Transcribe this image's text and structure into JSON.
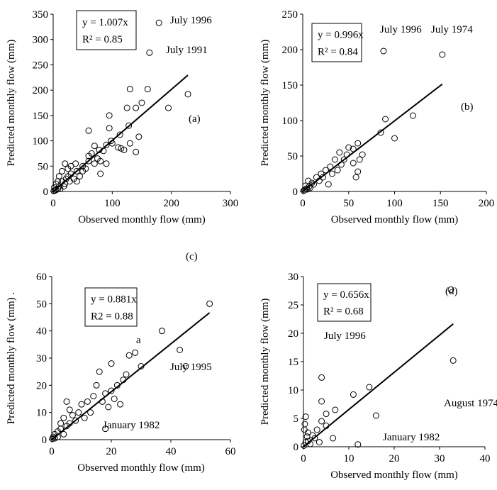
{
  "chart_data": [
    {
      "type": "scatter",
      "xlabel": "Observed monthly flow (mm)",
      "ylabel": "Predicted monthly flow (mm)",
      "xlim": [
        0,
        300
      ],
      "ylim": [
        0,
        350
      ],
      "xticks": [
        0,
        100,
        200,
        300
      ],
      "yticks": [
        0,
        50,
        100,
        150,
        200,
        250,
        300,
        350
      ],
      "equation": "y = 1.007x",
      "r2": "R² = 0.85",
      "trend_slope": 1.007,
      "annotations": [
        "July 1996",
        "July 1991",
        "(a)"
      ],
      "x": [
        228,
        195,
        160,
        150,
        145,
        140,
        130,
        128,
        125,
        120,
        115,
        113,
        110,
        100,
        98,
        95,
        95,
        90,
        85,
        80,
        78,
        75,
        70,
        65,
        60,
        60,
        55,
        50,
        45,
        40,
        38,
        35,
        30,
        28,
        25,
        22,
        20,
        18,
        15,
        15,
        12,
        10,
        10,
        8,
        8,
        5,
        5,
        3,
        2,
        1,
        20,
        25,
        30,
        40,
        50,
        60,
        70,
        80,
        90,
        130,
        140,
        179,
        163
      ],
      "y": [
        192,
        165,
        202,
        175,
        108,
        78,
        202,
        130,
        165,
        82,
        85,
        112,
        87,
        95,
        100,
        150,
        125,
        92,
        80,
        60,
        82,
        65,
        55,
        75,
        120,
        60,
        45,
        50,
        30,
        40,
        55,
        25,
        35,
        20,
        30,
        25,
        15,
        10,
        20,
        40,
        5,
        10,
        30,
        5,
        20,
        3,
        15,
        2,
        8,
        1,
        55,
        45,
        50,
        20,
        40,
        70,
        90,
        35,
        55,
        95,
        165,
        333,
        274
      ]
    },
    {
      "type": "scatter",
      "xlabel": "Observed monthly flow (mm)",
      "ylabel": "Predicted monthly flow (mm)",
      "xlim": [
        0,
        200
      ],
      "ylim": [
        0,
        250
      ],
      "xticks": [
        0,
        50,
        100,
        150,
        200
      ],
      "yticks": [
        0,
        50,
        100,
        150,
        200,
        250
      ],
      "equation": "y = 0.996x",
      "r2": "R² = 0.84",
      "trend_slope": 0.996,
      "annotations": [
        "July 1996",
        "July 1974",
        "(b)"
      ],
      "x": [
        88,
        152,
        120,
        100,
        90,
        85,
        65,
        60,
        55,
        60,
        50,
        48,
        45,
        40,
        42,
        35,
        38,
        30,
        32,
        28,
        25,
        22,
        20,
        18,
        15,
        12,
        10,
        8,
        6,
        5,
        3,
        2,
        1,
        4,
        7,
        55,
        58,
        62
      ],
      "y": [
        198,
        193,
        107,
        75,
        102,
        83,
        52,
        68,
        40,
        28,
        62,
        52,
        45,
        55,
        38,
        45,
        30,
        35,
        25,
        10,
        30,
        20,
        25,
        15,
        20,
        10,
        12,
        5,
        15,
        3,
        8,
        2,
        1,
        4,
        7,
        60,
        20,
        45
      ]
    },
    {
      "type": "scatter",
      "xlabel": "Observed monthly flow (mm)",
      "ylabel": "Predicted monthly flow (mm) .",
      "xlim": [
        0,
        60
      ],
      "ylim": [
        0,
        60
      ],
      "xticks": [
        0,
        20,
        40,
        60
      ],
      "yticks": [
        0,
        10,
        20,
        30,
        40,
        50,
        60
      ],
      "equation": "y = 0.881x",
      "r2": "R2 = 0.88",
      "trend_slope": 0.881,
      "annotations": [
        "July 1995",
        "a",
        "January 1982",
        "(c)"
      ],
      "x": [
        53,
        37,
        43,
        45,
        30,
        28,
        26,
        20,
        25,
        24,
        22,
        20,
        18,
        16,
        15,
        14,
        12,
        10,
        13,
        11,
        9,
        8,
        7,
        6,
        5,
        4,
        3,
        2,
        1,
        0.5,
        0.2,
        18,
        17,
        19,
        23,
        21,
        5,
        6,
        4,
        3,
        1,
        2
      ],
      "y": [
        50,
        40,
        33,
        27,
        27,
        32,
        31,
        28,
        24,
        22,
        20,
        18,
        17,
        25,
        20,
        16,
        14,
        13,
        10,
        8,
        10,
        7,
        9,
        6,
        5,
        8,
        4,
        3,
        2,
        1,
        0.3,
        4,
        14,
        12,
        13,
        15,
        14,
        11,
        2,
        6,
        0.5,
        1
      ]
    },
    {
      "type": "scatter",
      "xlabel": "Observed monthly flow (mm)",
      "ylabel": "Predicted monthly flow (mm)",
      "xlim": [
        0,
        40
      ],
      "ylim": [
        0,
        30
      ],
      "xticks": [
        0,
        10,
        20,
        30,
        40
      ],
      "yticks": [
        0,
        5,
        10,
        15,
        20,
        25,
        30
      ],
      "equation": "y = 0.656x",
      "r2": "R² = 0.68",
      "trend_slope": 0.656,
      "annotations": [
        "(d)",
        "July 1996",
        "August 1974",
        "January 1982"
      ],
      "x": [
        32.5,
        33,
        14.5,
        11,
        16,
        12,
        4,
        4,
        5,
        4,
        3,
        2,
        1,
        0.5,
        0.3,
        0.2,
        7,
        6.5,
        5,
        2.5,
        1.5,
        0.1,
        3.5,
        1,
        0.8,
        0.5
      ],
      "y": [
        27.7,
        15.2,
        10.5,
        9.2,
        5.5,
        0.4,
        12.2,
        8,
        5.8,
        4.5,
        3,
        2,
        1,
        5.3,
        4,
        3,
        6.5,
        1.5,
        3.7,
        1.5,
        0.5,
        0.2,
        0.8,
        2.5,
        1.8,
        0.8
      ]
    }
  ]
}
